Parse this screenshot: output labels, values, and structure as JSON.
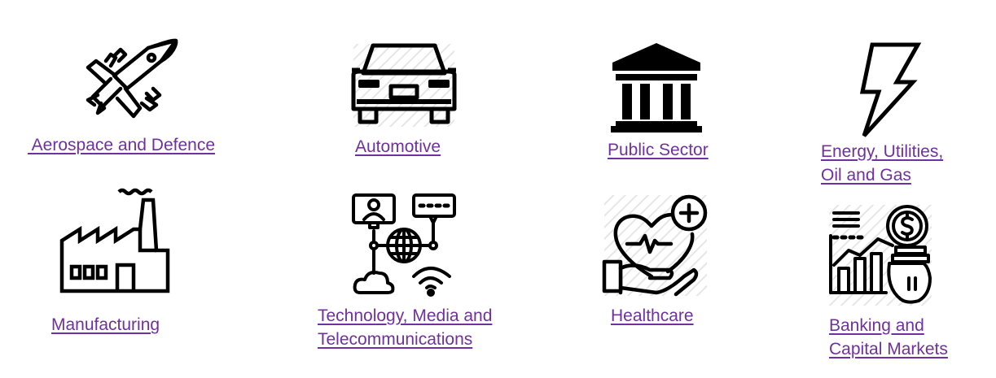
{
  "sectors": [
    {
      "key": "aerospace",
      "icon": "jet-fighter-icon",
      "label": " Aerospace and Defence"
    },
    {
      "key": "automotive",
      "icon": "car-front-icon",
      "label": "Automotive"
    },
    {
      "key": "public",
      "icon": "government-building-icon",
      "label": "Public Sector"
    },
    {
      "key": "energy",
      "icon": "lightning-bolt-icon",
      "label_lines": [
        "Energy, Utilities,",
        "Oil and Gas"
      ]
    },
    {
      "key": "manufacturing",
      "icon": "factory-icon",
      "label": "Manufacturing"
    },
    {
      "key": "tmt",
      "icon": "globe-network-icon",
      "label_lines": [
        "Technology, Media and",
        "Telecommunications"
      ]
    },
    {
      "key": "healthcare",
      "icon": "heart-hand-icon",
      "label": "Healthcare"
    },
    {
      "key": "banking",
      "icon": "money-bag-chart-icon",
      "label_lines": [
        "Banking and",
        "Capital Markets"
      ]
    }
  ],
  "colors": {
    "link": "#7030a0",
    "icon": "#000000",
    "hatch": "#e6e6e6"
  }
}
